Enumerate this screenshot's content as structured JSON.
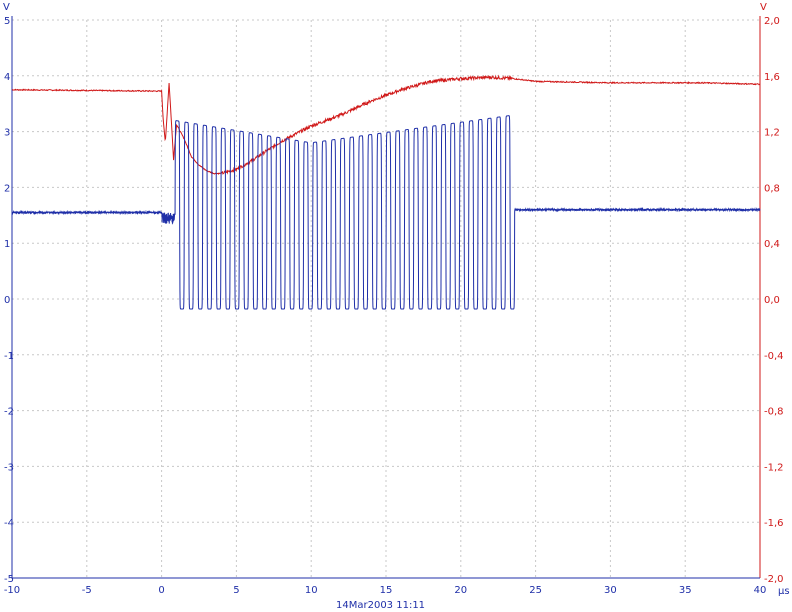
{
  "chart_data": {
    "type": "line",
    "title": "",
    "timestamp": "14Mar2003  11:11",
    "x_unit": "µs",
    "xlim": [
      -10,
      40
    ],
    "x_ticks": [
      "-10",
      "-5",
      "0",
      "5",
      "10",
      "15",
      "20",
      "25",
      "30",
      "35",
      "40"
    ],
    "left_axis": {
      "unit": "V",
      "ylim": [
        -5,
        5
      ],
      "ticks": [
        "-5",
        "-4",
        "-3",
        "-2",
        "-1",
        "0",
        "1",
        "2",
        "3",
        "4",
        "5"
      ],
      "color": "#1f2fa8"
    },
    "right_axis": {
      "unit": "V",
      "ylim": [
        -2.0,
        2.0
      ],
      "ticks": [
        "-2,0",
        "-1,6",
        "-1,2",
        "-0,8",
        "-0,4",
        "0,0",
        "0,4",
        "0,8",
        "1,2",
        "1,6",
        "2,0"
      ],
      "color": "#d01818"
    },
    "grid": true,
    "series": [
      {
        "color": "#1f2fa8",
        "axis": "left",
        "baseline_before_us": 1.55,
        "baseline_after_us": 1.6,
        "burst_start_us": 0.9,
        "burst_end_us": 23.6,
        "burst_low": -0.18,
        "burst_high_start": 3.2,
        "burst_high_min": 2.8,
        "burst_high_end": 3.3,
        "burst_cycles": 37
      },
      {
        "color": "#d01818",
        "axis": "right",
        "points": [
          [
            -10,
            1.5
          ],
          [
            0,
            1.49
          ],
          [
            0.1,
            1.3
          ],
          [
            0.25,
            1.12
          ],
          [
            0.4,
            1.38
          ],
          [
            0.5,
            1.55
          ],
          [
            0.65,
            1.28
          ],
          [
            0.8,
            1.0
          ],
          [
            1.0,
            1.25
          ],
          [
            1.5,
            1.15
          ],
          [
            2,
            1.02
          ],
          [
            2.5,
            0.96
          ],
          [
            3,
            0.92
          ],
          [
            3.5,
            0.9
          ],
          [
            4,
            0.9
          ],
          [
            5,
            0.93
          ],
          [
            6,
            0.99
          ],
          [
            7,
            1.06
          ],
          [
            8,
            1.13
          ],
          [
            10,
            1.24
          ],
          [
            12,
            1.32
          ],
          [
            14,
            1.42
          ],
          [
            16,
            1.5
          ],
          [
            18,
            1.56
          ],
          [
            20,
            1.58
          ],
          [
            22,
            1.59
          ],
          [
            23.5,
            1.58
          ],
          [
            25,
            1.56
          ],
          [
            30,
            1.55
          ],
          [
            33,
            1.55
          ],
          [
            36,
            1.55
          ],
          [
            40,
            1.54
          ]
        ]
      }
    ]
  }
}
